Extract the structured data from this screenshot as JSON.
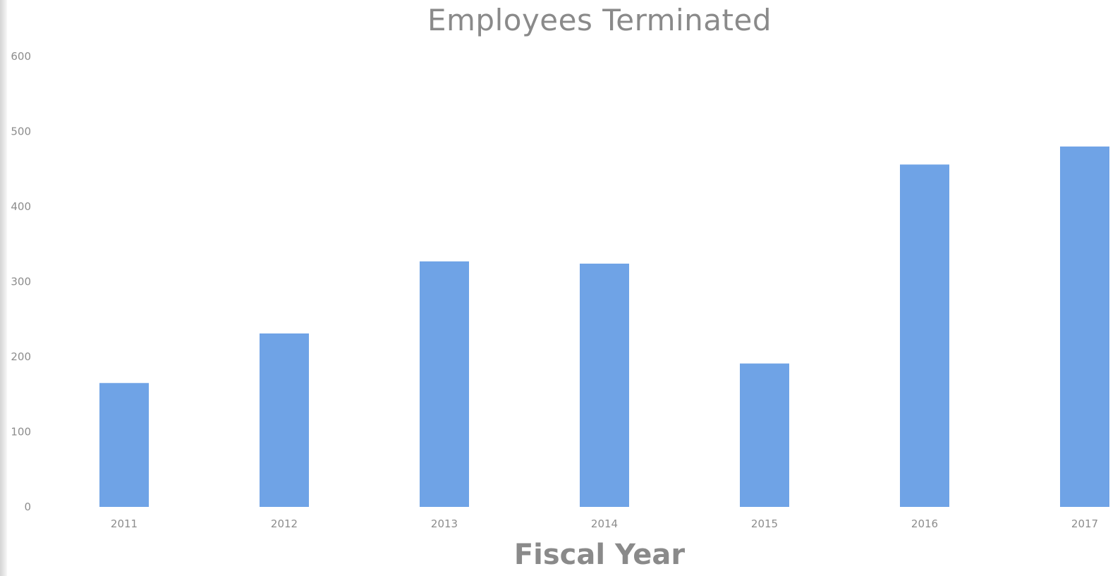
{
  "chart_data": {
    "type": "bar",
    "title": "Employees Terminated",
    "xlabel": "Fiscal Year",
    "ylabel": "",
    "categories": [
      "2011",
      "2012",
      "2013",
      "2014",
      "2015",
      "2016",
      "2017"
    ],
    "values": [
      165,
      231,
      327,
      324,
      191,
      456,
      480
    ],
    "ylim": [
      0,
      600
    ],
    "yticks": [
      "0",
      "100",
      "200",
      "300",
      "400",
      "500",
      "600"
    ],
    "bar_color": "#6fa3e6",
    "grid": false,
    "legend": "none"
  }
}
